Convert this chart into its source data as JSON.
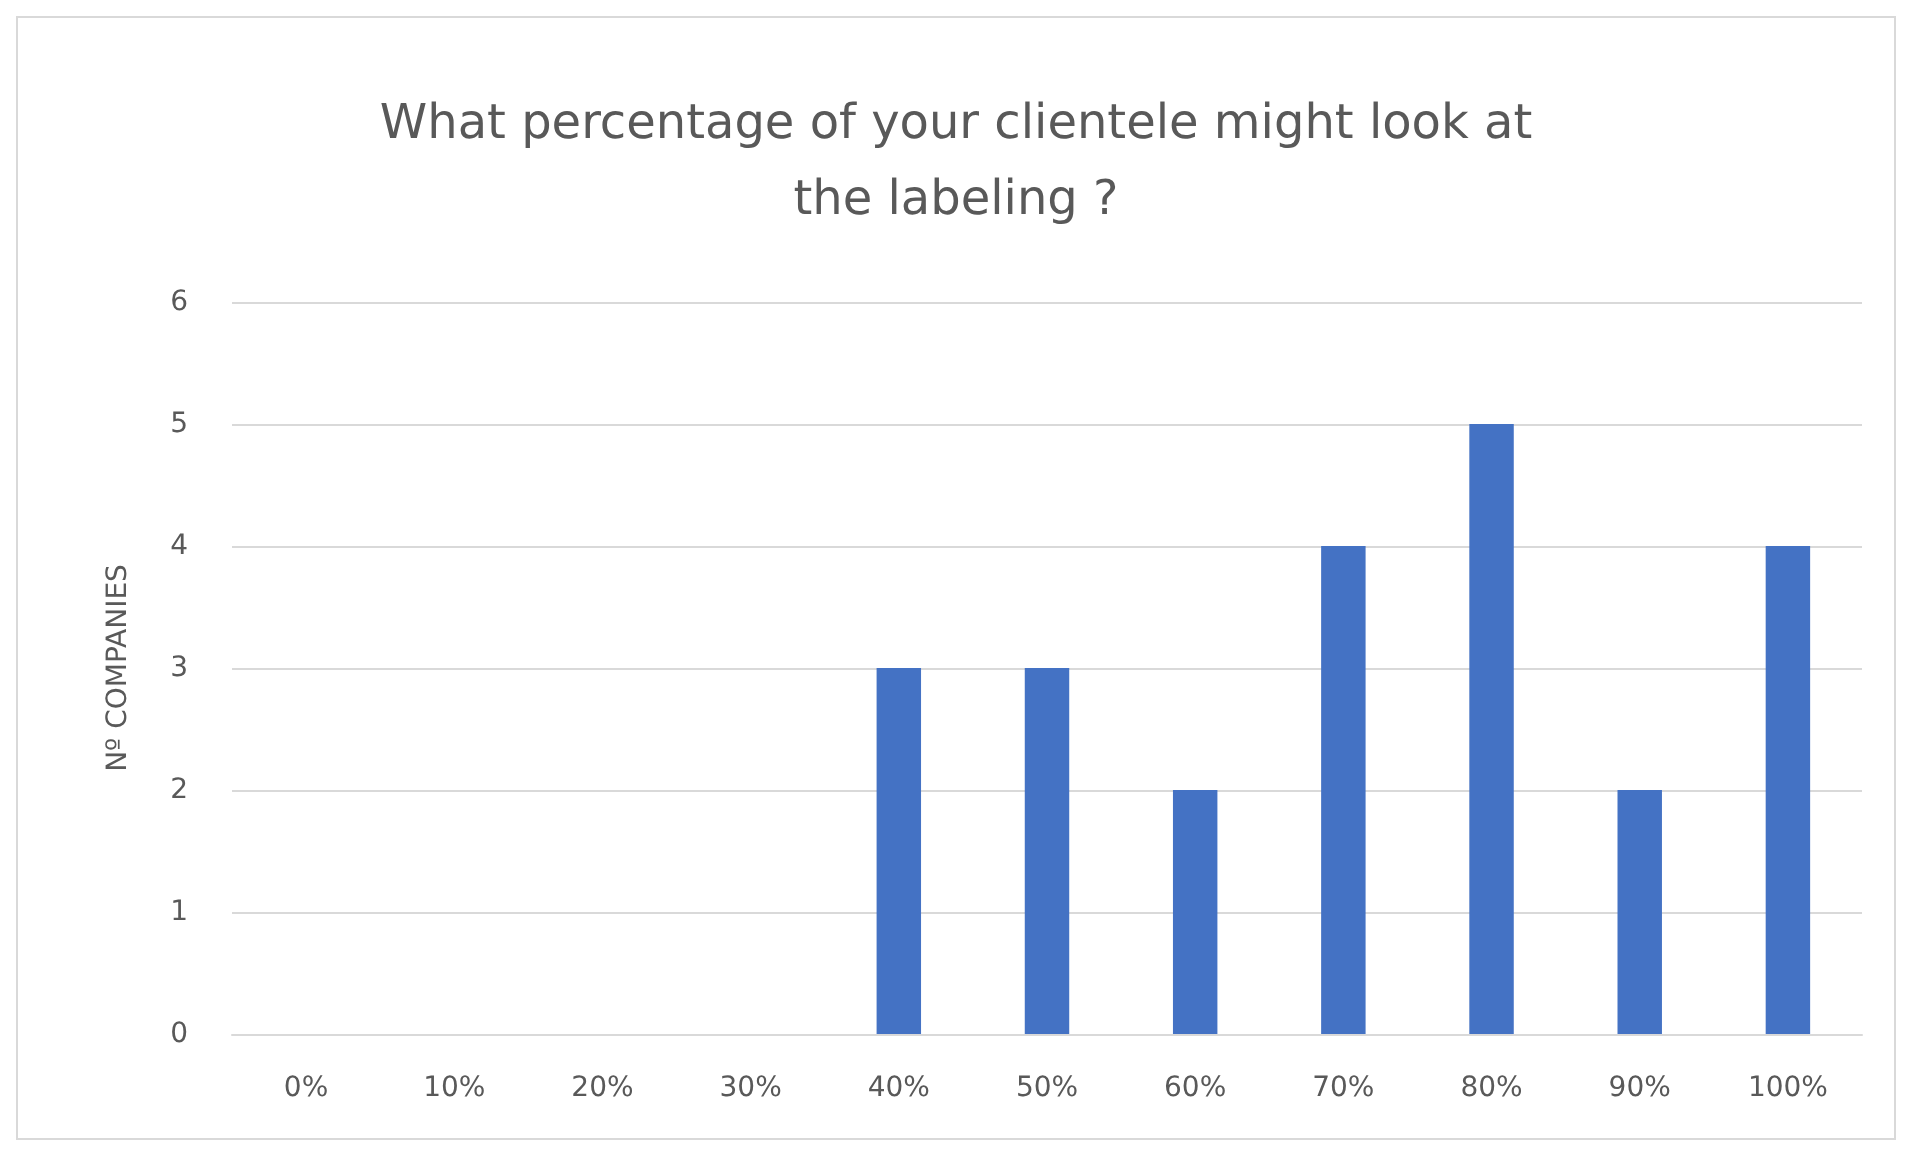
{
  "chart_data": {
    "type": "bar",
    "title": "What percentage of your clientele might look at\nthe labeling ?",
    "ylabel": "Nº COMPANIES",
    "categories": [
      "0%",
      "10%",
      "20%",
      "30%",
      "40%",
      "50%",
      "60%",
      "70%",
      "80%",
      "90%",
      "100%"
    ],
    "values": [
      0,
      0,
      0,
      0,
      3,
      3,
      2,
      4,
      5,
      2,
      4
    ],
    "color": "#4472c4",
    "ylim": [
      0,
      6
    ],
    "yticks": [
      0,
      1,
      2,
      3,
      4,
      5,
      6
    ],
    "grid": "y"
  }
}
